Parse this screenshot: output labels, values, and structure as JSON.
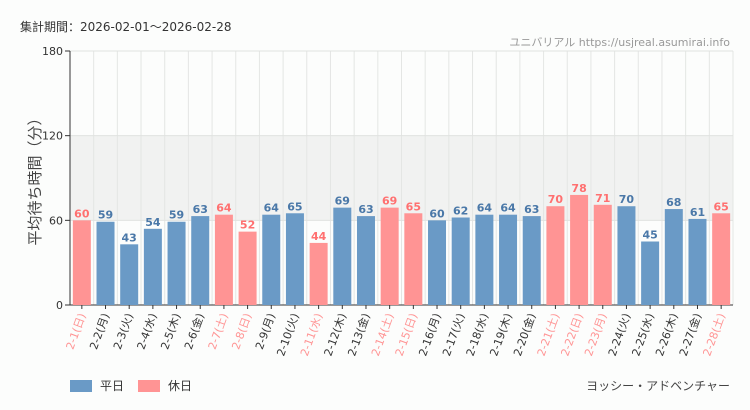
{
  "header": {
    "period": "集計期間：2026-02-01～2026-02-28",
    "site": "ユニバリアル https://usjreal.asumirai.info"
  },
  "attraction": "ヨッシー・アドベンチャー",
  "legend": [
    {
      "label": "平日",
      "color": "#6a9ac6"
    },
    {
      "label": "休日",
      "color": "#ff9494"
    }
  ],
  "chart_data": {
    "type": "bar",
    "ylabel": "平均待ち時間（分）",
    "ylim": [
      0,
      180
    ],
    "yticks": [
      0,
      60,
      120,
      180
    ],
    "shaded_band": [
      60,
      120
    ],
    "grid": true,
    "legend_position": "bottom-left",
    "categories": [
      "2-1(日)",
      "2-2(月)",
      "2-3(火)",
      "2-4(水)",
      "2-5(木)",
      "2-6(金)",
      "2-7(土)",
      "2-8(日)",
      "2-9(月)",
      "2-10(火)",
      "2-11(水)",
      "2-12(木)",
      "2-13(金)",
      "2-14(土)",
      "2-15(日)",
      "2-16(月)",
      "2-17(火)",
      "2-18(水)",
      "2-19(木)",
      "2-20(金)",
      "2-21(土)",
      "2-22(日)",
      "2-23(月)",
      "2-24(火)",
      "2-25(水)",
      "2-26(木)",
      "2-27(金)",
      "2-28(土)"
    ],
    "values": [
      60,
      59,
      43,
      54,
      59,
      63,
      64,
      52,
      64,
      65,
      44,
      69,
      63,
      69,
      65,
      60,
      62,
      64,
      64,
      63,
      70,
      78,
      71,
      70,
      45,
      68,
      61,
      65
    ],
    "holiday": [
      1,
      0,
      0,
      0,
      0,
      0,
      1,
      1,
      0,
      0,
      1,
      0,
      0,
      1,
      1,
      0,
      0,
      0,
      0,
      0,
      1,
      1,
      1,
      0,
      0,
      0,
      0,
      1
    ],
    "colors": {
      "weekday": "#6a9ac6",
      "holiday": "#ff9494",
      "weekday_label": "#4a78a8",
      "holiday_label": "#ff7070"
    }
  }
}
